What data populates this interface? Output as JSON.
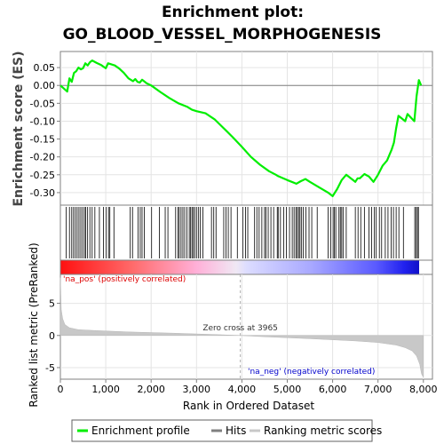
{
  "chart_data": {
    "type": "line",
    "title_line1": "Enrichment plot:",
    "title_line2": "GO_BLOOD_VESSEL_MORPHOGENESIS",
    "xlabel": "Rank in Ordered Dataset",
    "ylabel_top": "Enrichment score (ES)",
    "ylabel_bottom": "Ranked list metric (PreRanked)",
    "xlim": [
      0,
      8200
    ],
    "es_ylim": [
      -0.335,
      0.095
    ],
    "metric_ylim": [
      -6.8,
      9.5
    ],
    "x_ticks": [
      {
        "value": 0,
        "label": "0"
      },
      {
        "value": 1000,
        "label": "1,000"
      },
      {
        "value": 2000,
        "label": "2,000"
      },
      {
        "value": 3000,
        "label": "3,000"
      },
      {
        "value": 4000,
        "label": "4,000"
      },
      {
        "value": 5000,
        "label": "5,000"
      },
      {
        "value": 6000,
        "label": "6,000"
      },
      {
        "value": 7000,
        "label": "7,000"
      },
      {
        "value": 8000,
        "label": "8,000"
      }
    ],
    "es_ticks": [
      {
        "value": 0.05,
        "label": "0.05"
      },
      {
        "value": 0.0,
        "label": "0.00"
      },
      {
        "value": -0.05,
        "label": "-0.05"
      },
      {
        "value": -0.1,
        "label": "-0.10"
      },
      {
        "value": -0.15,
        "label": "-0.15"
      },
      {
        "value": -0.2,
        "label": "-0.20"
      },
      {
        "value": -0.25,
        "label": "-0.25"
      },
      {
        "value": -0.3,
        "label": "-0.30"
      }
    ],
    "metric_ticks": [
      {
        "value": 5,
        "label": "5"
      },
      {
        "value": 0,
        "label": "0"
      },
      {
        "value": -5,
        "label": "-5"
      }
    ],
    "enrichment_profile": {
      "x": [
        0,
        150,
        200,
        250,
        300,
        350,
        400,
        450,
        500,
        550,
        600,
        650,
        700,
        800,
        900,
        1000,
        1050,
        1100,
        1150,
        1200,
        1300,
        1400,
        1500,
        1600,
        1650,
        1700,
        1750,
        1800,
        1900,
        2000,
        2200,
        2400,
        2600,
        2800,
        2900,
        3000,
        3200,
        3400,
        3600,
        3800,
        4000,
        4200,
        4400,
        4600,
        4750,
        4800,
        5000,
        5100,
        5200,
        5300,
        5400,
        5500,
        5700,
        5900,
        6000,
        6100,
        6200,
        6300,
        6400,
        6500,
        6550,
        6600,
        6700,
        6800,
        6900,
        7000,
        7100,
        7200,
        7300,
        7350,
        7400,
        7450,
        7500,
        7600,
        7650,
        7800,
        7850,
        7900,
        7950
      ],
      "y": [
        0.0,
        -0.017,
        0.02,
        0.01,
        0.035,
        0.04,
        0.05,
        0.045,
        0.048,
        0.062,
        0.056,
        0.065,
        0.07,
        0.063,
        0.057,
        0.048,
        0.062,
        0.06,
        0.058,
        0.056,
        0.047,
        0.035,
        0.02,
        0.012,
        0.018,
        0.01,
        0.008,
        0.016,
        0.006,
        0.0,
        -0.018,
        -0.035,
        -0.05,
        -0.06,
        -0.068,
        -0.072,
        -0.078,
        -0.095,
        -0.12,
        -0.145,
        -0.172,
        -0.2,
        -0.222,
        -0.24,
        -0.25,
        -0.254,
        -0.265,
        -0.27,
        -0.275,
        -0.268,
        -0.262,
        -0.27,
        -0.285,
        -0.3,
        -0.31,
        -0.29,
        -0.265,
        -0.25,
        -0.26,
        -0.27,
        -0.26,
        -0.26,
        -0.248,
        -0.255,
        -0.27,
        -0.25,
        -0.225,
        -0.21,
        -0.18,
        -0.16,
        -0.12,
        -0.085,
        -0.09,
        -0.1,
        -0.08,
        -0.1,
        -0.03,
        0.015,
        0.0
      ]
    },
    "hits": [
      130,
      200,
      250,
      290,
      330,
      370,
      410,
      450,
      490,
      530,
      560,
      600,
      650,
      700,
      760,
      860,
      950,
      1010,
      1060,
      1090,
      1180,
      1540,
      1590,
      1710,
      1760,
      1800,
      1850,
      2010,
      2180,
      2310,
      2370,
      2540,
      2590,
      2620,
      2660,
      2700,
      2740,
      2790,
      2840,
      2870,
      2900,
      2930,
      2960,
      3000,
      3040,
      3080,
      3140,
      3330,
      3380,
      3430,
      3600,
      3650,
      3700,
      3760,
      3900,
      4020,
      4080,
      4130,
      4280,
      4330,
      4380,
      4440,
      4500,
      4530,
      4580,
      4640,
      4700,
      4780,
      4800,
      4850,
      4920,
      4980,
      5050,
      5110,
      5150,
      5190,
      5220,
      5250,
      5280,
      5310,
      5350,
      5410,
      5480,
      5540,
      5660,
      5900,
      5960,
      6010,
      6040,
      6070,
      6140,
      6170,
      6200,
      6230,
      6300,
      6500,
      6560,
      6620,
      6700,
      6800,
      6860,
      6920,
      6960,
      7030,
      7080,
      7160,
      7220,
      7290,
      7340,
      7400,
      7460,
      7560,
      7810,
      7840,
      7870,
      7890
    ],
    "metric_profile": {
      "x": [
        0,
        20,
        50,
        100,
        200,
        400,
        800,
        1500,
        2500,
        3500,
        3965,
        4500,
        5500,
        6500,
        7000,
        7400,
        7600,
        7750,
        7850,
        7920,
        7960,
        8000
      ],
      "y": [
        9.0,
        4.0,
        2.6,
        1.7,
        1.2,
        0.9,
        0.75,
        0.55,
        0.35,
        0.12,
        0.0,
        -0.2,
        -0.5,
        -0.85,
        -1.1,
        -1.5,
        -1.9,
        -2.4,
        -3.2,
        -4.5,
        -6.0,
        -6.5
      ]
    },
    "zero_cross_label": "Zero cross at 3965",
    "zero_cross_x": 3965,
    "pos_label": "'na_pos' (positively correlated)",
    "neg_label": "'na_neg' (negatively correlated)",
    "legend": [
      {
        "label": "Enrichment profile",
        "color": "#00ee00"
      },
      {
        "label": "Hits",
        "color": "#808080"
      },
      {
        "label": "Ranking metric scores",
        "color": "#c8c8c8"
      }
    ],
    "colors": {
      "profile": "#00ee00",
      "pos": "#ff0000",
      "neg": "#0000ff",
      "pos_label": "#dd0000",
      "neg_label": "#0000cc",
      "metric_fill": "#c8c8c8"
    }
  }
}
